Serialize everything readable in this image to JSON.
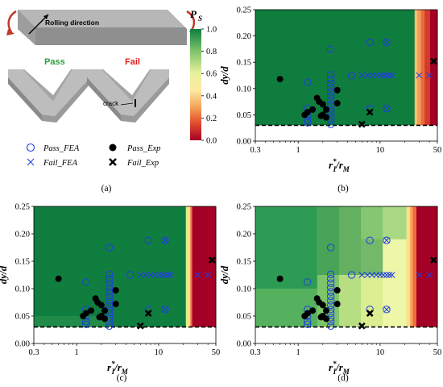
{
  "figure": {
    "captions": [
      "(a)",
      "(b)",
      "(c)",
      "(d)"
    ]
  },
  "panel_a": {
    "rolling_direction_label": "Rolling direction",
    "pass_label": "Pass",
    "fail_label": "Fail",
    "crack_label": "crack",
    "colorbar": {
      "title_main": "P",
      "title_sub": "S",
      "ticks": [
        "1.0",
        "0.8",
        "0.6",
        "0.4",
        "0.2",
        "0.0"
      ]
    },
    "legend": {
      "pass_fea": "Pass_FEA",
      "fail_fea": "Fail_FEA",
      "pass_exp": "Pass_Exp",
      "fail_exp": "Fail_Exp"
    },
    "colors": {
      "pass_text": "#2e9e3e",
      "fail_text": "#e02020",
      "arrow": "#c0392b"
    }
  },
  "chart_data": {
    "type": "scatter",
    "xlabel_main": "r",
    "xlabel_sup": "*",
    "xlabel_sub": "I",
    "xlabel_mid": "/r",
    "xlabel_sub2": "M",
    "ylabel": "dy/d",
    "xscale": "log",
    "xlim": [
      0.3,
      50
    ],
    "ylim": [
      0.0,
      0.25
    ],
    "x_ticks": [
      "0.3",
      "1",
      "10",
      "50"
    ],
    "x_tick_values": [
      0.3,
      1,
      10,
      50
    ],
    "y_ticks": [
      "0.00",
      "0.05",
      "0.10",
      "0.15",
      "0.20",
      "0.25"
    ],
    "y_tick_values": [
      0,
      0.05,
      0.1,
      0.15,
      0.2,
      0.25
    ],
    "threshold_dashed_y": 0.03,
    "colors": {
      "fea": "#1f3fe0",
      "exp": "#000000",
      "dark_green": "#0d7a3f",
      "red": "#a50026"
    },
    "series": [
      {
        "name": "Pass_FEA",
        "points": [
          [
            1.3,
            0.035
          ],
          [
            1.3,
            0.04
          ],
          [
            1.3,
            0.05
          ],
          [
            1.3,
            0.062
          ],
          [
            1.3,
            0.112
          ],
          [
            2.5,
            0.032
          ],
          [
            2.5,
            0.04
          ],
          [
            2.5,
            0.047
          ],
          [
            2.5,
            0.055
          ],
          [
            2.5,
            0.062
          ],
          [
            2.5,
            0.07
          ],
          [
            2.5,
            0.078
          ],
          [
            2.5,
            0.086
          ],
          [
            2.5,
            0.094
          ],
          [
            2.5,
            0.102
          ],
          [
            2.5,
            0.11
          ],
          [
            2.5,
            0.118
          ],
          [
            2.5,
            0.126
          ],
          [
            2.5,
            0.175
          ],
          [
            4.5,
            0.125
          ],
          [
            7.5,
            0.188
          ],
          [
            7.5,
            0.062
          ],
          [
            12,
            0.188
          ],
          [
            12,
            0.062
          ]
        ]
      },
      {
        "name": "Fail_FEA",
        "points": [
          [
            6,
            0.125
          ],
          [
            7,
            0.125
          ],
          [
            8,
            0.125
          ],
          [
            9,
            0.125
          ],
          [
            10,
            0.125
          ],
          [
            11,
            0.125
          ],
          [
            12,
            0.125
          ],
          [
            13,
            0.125
          ],
          [
            14,
            0.125
          ],
          [
            12,
            0.188
          ],
          [
            12,
            0.062
          ],
          [
            30,
            0.125
          ],
          [
            40,
            0.125
          ]
        ]
      },
      {
        "name": "Pass_Exp",
        "points": [
          [
            0.6,
            0.118
          ],
          [
            1.2,
            0.05
          ],
          [
            1.3,
            0.055
          ],
          [
            1.5,
            0.06
          ],
          [
            1.7,
            0.082
          ],
          [
            1.8,
            0.075
          ],
          [
            2.0,
            0.07
          ],
          [
            2.0,
            0.05
          ],
          [
            2.2,
            0.06
          ],
          [
            3.0,
            0.097
          ],
          [
            3.0,
            0.072
          ],
          [
            1.9,
            0.048
          ],
          [
            2.2,
            0.045
          ]
        ]
      },
      {
        "name": "Fail_Exp",
        "points": [
          [
            45,
            0.152
          ],
          [
            7.5,
            0.055
          ],
          [
            6,
            0.032
          ]
        ]
      }
    ],
    "panels": [
      {
        "id": "b",
        "map": "b"
      },
      {
        "id": "c",
        "map": "c"
      },
      {
        "id": "d",
        "map": "d"
      }
    ]
  }
}
